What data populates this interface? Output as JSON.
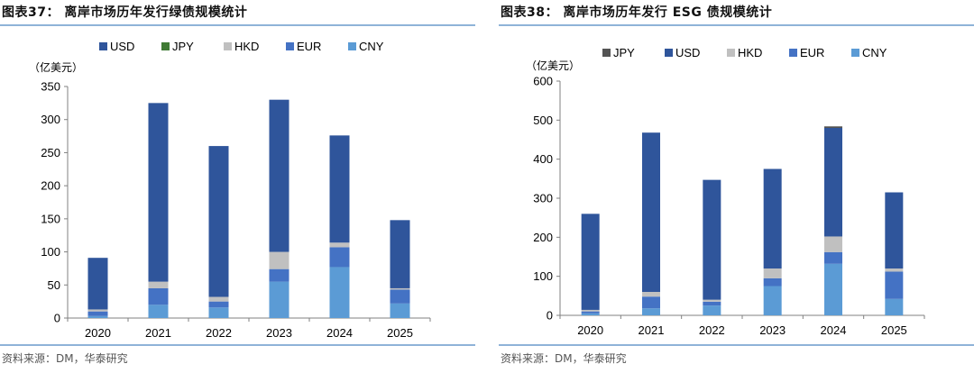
{
  "colors": {
    "USD": "#2f559b",
    "JPY": "#3f7a34",
    "JPY_right": "#545454",
    "HKD": "#c0c0c0",
    "EUR": "#4472c4",
    "CNY": "#5b9bd5",
    "rule": "#8fb3d8"
  },
  "left": {
    "title": "图表37：  离岸市场历年发行绿债规模统计",
    "source": "资料来源：DM，华泰研究",
    "chart_data": {
      "type": "bar",
      "stacked": true,
      "unit_label": "（亿美元）",
      "categories": [
        "2020",
        "2021",
        "2022",
        "2023",
        "2024",
        "2025"
      ],
      "legend_order": [
        "USD",
        "JPY",
        "HKD",
        "EUR",
        "CNY"
      ],
      "legend_position": "top",
      "ylim": [
        0,
        350
      ],
      "yticks": [
        0,
        50,
        100,
        150,
        200,
        250,
        300,
        350
      ],
      "grid": false,
      "series": [
        {
          "name": "CNY",
          "values": [
            3,
            20,
            16,
            55,
            77,
            22
          ]
        },
        {
          "name": "EUR",
          "values": [
            7,
            25,
            9,
            19,
            30,
            21
          ]
        },
        {
          "name": "HKD",
          "values": [
            3,
            10,
            7,
            26,
            7,
            2
          ]
        },
        {
          "name": "JPY",
          "values": [
            0,
            0,
            0,
            0,
            0,
            0
          ]
        },
        {
          "name": "USD",
          "values": [
            78,
            270,
            228,
            230,
            162,
            103
          ]
        }
      ]
    }
  },
  "right": {
    "title": "图表38：  离岸市场历年发行 ESG 债规模统计",
    "source": "资料来源：DM，华泰研究",
    "chart_data": {
      "type": "bar",
      "stacked": true,
      "unit_label": "（亿美元）",
      "categories": [
        "2020",
        "2021",
        "2022",
        "2023",
        "2024",
        "2025"
      ],
      "legend_order": [
        "JPY",
        "USD",
        "HKD",
        "EUR",
        "CNY"
      ],
      "legend_position": "top",
      "ylim": [
        0,
        600
      ],
      "yticks": [
        0,
        100,
        200,
        300,
        400,
        500,
        600
      ],
      "grid": false,
      "series": [
        {
          "name": "CNY",
          "values": [
            5,
            18,
            25,
            75,
            132,
            42
          ]
        },
        {
          "name": "EUR",
          "values": [
            5,
            30,
            10,
            20,
            30,
            70
          ]
        },
        {
          "name": "HKD",
          "values": [
            4,
            12,
            5,
            25,
            40,
            8
          ]
        },
        {
          "name": "USD",
          "values": [
            246,
            408,
            307,
            255,
            278,
            195
          ]
        },
        {
          "name": "JPY",
          "values": [
            0,
            0,
            0,
            0,
            4,
            0
          ]
        }
      ]
    }
  }
}
